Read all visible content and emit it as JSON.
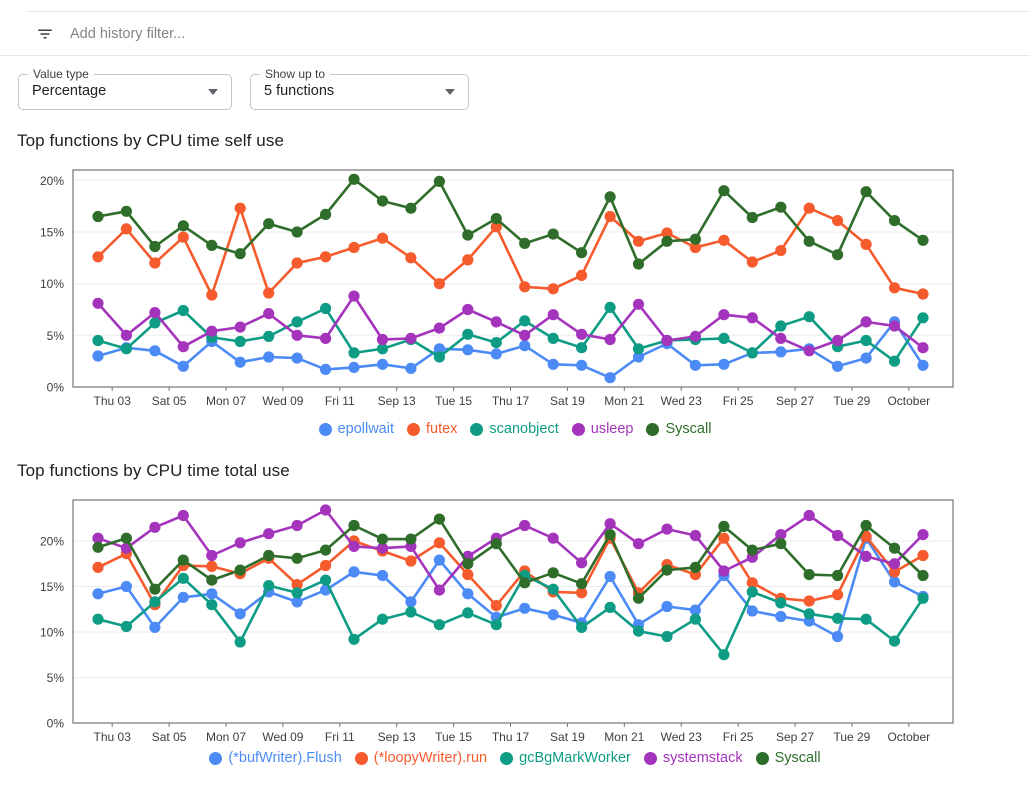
{
  "filter_bar": {
    "icon": "filter-list-icon",
    "placeholder": "Add history filter..."
  },
  "controls": {
    "value_type": {
      "label": "Value type",
      "value": "Percentage"
    },
    "show_up_to": {
      "label": "Show up to",
      "value": "5 functions"
    }
  },
  "chart_data": [
    {
      "type": "line",
      "title": "Top functions by CPU time self use",
      "xlabel": "",
      "ylabel": "",
      "x_tick_labels": [
        "Thu 03",
        "Sat 05",
        "Mon 07",
        "Wed 09",
        "Fri 11",
        "Sep 13",
        "Tue 15",
        "Thu 17",
        "Sat 19",
        "Mon 21",
        "Wed 23",
        "Fri 25",
        "Sep 27",
        "Tue 29",
        "October"
      ],
      "ytick_labels": [
        "0%",
        "5%",
        "10%",
        "15%",
        "20%"
      ],
      "ylim": [
        0,
        21
      ],
      "grid": true,
      "legend_position": "bottom",
      "series": [
        {
          "name": "epollwait",
          "color": "#4C8BF5",
          "values": [
            3.0,
            3.8,
            3.5,
            2.0,
            4.4,
            2.4,
            2.9,
            2.8,
            1.7,
            1.9,
            2.2,
            1.8,
            3.7,
            3.6,
            3.2,
            4.0,
            2.2,
            2.1,
            0.9,
            2.9,
            4.2,
            2.1,
            2.2,
            3.3,
            3.4,
            3.7,
            2.0,
            2.8,
            6.3,
            2.1
          ]
        },
        {
          "name": "futex",
          "color": "#F55B2D",
          "values": [
            12.6,
            15.3,
            12.0,
            14.5,
            8.9,
            17.3,
            9.1,
            12.0,
            12.6,
            13.5,
            14.4,
            12.5,
            10.0,
            12.3,
            15.5,
            9.7,
            9.5,
            10.8,
            16.5,
            14.1,
            14.9,
            13.5,
            14.2,
            12.1,
            13.2,
            17.3,
            16.1,
            13.8,
            9.6,
            9.0
          ]
        },
        {
          "name": "scanobject",
          "color": "#0E9C84",
          "values": [
            4.5,
            3.7,
            6.2,
            7.4,
            4.8,
            4.4,
            4.9,
            6.3,
            7.6,
            3.3,
            3.7,
            4.6,
            2.9,
            5.1,
            4.3,
            6.4,
            4.7,
            3.8,
            7.7,
            3.7,
            4.5,
            4.6,
            4.7,
            3.3,
            5.9,
            6.8,
            3.9,
            4.5,
            2.5,
            6.7
          ]
        },
        {
          "name": "usleep",
          "color": "#A434BC",
          "values": [
            8.1,
            5.0,
            7.2,
            3.9,
            5.4,
            5.8,
            7.1,
            5.0,
            4.7,
            8.8,
            4.6,
            4.7,
            5.7,
            7.5,
            6.3,
            5.0,
            7.0,
            5.1,
            4.6,
            8.0,
            4.5,
            4.9,
            7.0,
            6.7,
            4.7,
            3.5,
            4.5,
            6.3,
            5.9,
            3.8
          ]
        },
        {
          "name": "Syscall",
          "color": "#2F6E2A",
          "values": [
            16.5,
            17.0,
            13.6,
            15.6,
            13.7,
            12.9,
            15.8,
            15.0,
            16.7,
            20.1,
            18.0,
            17.3,
            19.9,
            14.7,
            16.3,
            13.9,
            14.8,
            13.0,
            18.4,
            11.9,
            14.1,
            14.3,
            19.0,
            16.4,
            17.4,
            14.1,
            12.8,
            18.9,
            16.1,
            14.2
          ]
        }
      ]
    },
    {
      "type": "line",
      "title": "Top functions by CPU time total use",
      "xlabel": "",
      "ylabel": "",
      "x_tick_labels": [
        "Thu 03",
        "Sat 05",
        "Mon 07",
        "Wed 09",
        "Fri 11",
        "Sep 13",
        "Tue 15",
        "Thu 17",
        "Sat 19",
        "Mon 21",
        "Wed 23",
        "Fri 25",
        "Sep 27",
        "Tue 29",
        "October"
      ],
      "ytick_labels": [
        "0%",
        "5%",
        "10%",
        "15%",
        "20%"
      ],
      "ylim": [
        0,
        24.5
      ],
      "grid": true,
      "legend_position": "bottom",
      "series": [
        {
          "name": "(*bufWriter).Flush",
          "color": "#4C8BF5",
          "values": [
            14.2,
            15.0,
            10.5,
            13.8,
            14.2,
            12.0,
            14.4,
            13.3,
            14.6,
            16.6,
            16.2,
            13.3,
            17.9,
            14.2,
            11.6,
            12.6,
            11.9,
            11.0,
            16.1,
            10.8,
            12.8,
            12.4,
            16.2,
            12.3,
            11.7,
            11.2,
            9.5,
            20.3,
            15.5,
            13.9
          ]
        },
        {
          "name": "(*loopyWriter).run",
          "color": "#F55B2D",
          "values": [
            17.1,
            18.6,
            13.0,
            17.3,
            17.2,
            16.4,
            18.1,
            15.2,
            17.3,
            20.0,
            18.9,
            17.8,
            19.8,
            16.3,
            12.9,
            16.7,
            14.4,
            14.3,
            20.3,
            14.3,
            17.4,
            16.3,
            20.3,
            15.4,
            13.7,
            13.4,
            14.1,
            20.5,
            16.6,
            18.4
          ]
        },
        {
          "name": "gcBgMarkWorker",
          "color": "#0E9C84",
          "values": [
            11.4,
            10.6,
            13.3,
            15.9,
            13.0,
            8.9,
            15.1,
            14.3,
            15.7,
            9.2,
            11.4,
            12.2,
            10.8,
            12.1,
            10.8,
            16.2,
            14.7,
            10.5,
            12.7,
            10.1,
            9.5,
            11.4,
            7.5,
            14.4,
            13.2,
            12.0,
            11.5,
            11.4,
            9.0,
            13.7
          ]
        },
        {
          "name": "systemstack",
          "color": "#A434BC",
          "values": [
            20.3,
            19.2,
            21.5,
            22.8,
            18.4,
            19.8,
            20.8,
            21.7,
            23.4,
            19.4,
            19.2,
            19.4,
            14.6,
            18.3,
            20.3,
            21.7,
            20.3,
            17.6,
            21.9,
            19.7,
            21.3,
            20.6,
            16.7,
            18.2,
            20.7,
            22.8,
            20.6,
            18.3,
            17.5,
            20.7
          ]
        },
        {
          "name": "Syscall",
          "color": "#2F6E2A",
          "values": [
            19.3,
            20.3,
            14.7,
            17.9,
            15.7,
            16.8,
            18.4,
            18.1,
            19.0,
            21.7,
            20.2,
            20.2,
            22.4,
            17.5,
            19.7,
            15.4,
            16.5,
            15.3,
            20.7,
            13.7,
            16.8,
            17.1,
            21.6,
            19.0,
            19.7,
            16.3,
            16.2,
            21.7,
            19.2,
            16.2
          ]
        }
      ]
    }
  ]
}
